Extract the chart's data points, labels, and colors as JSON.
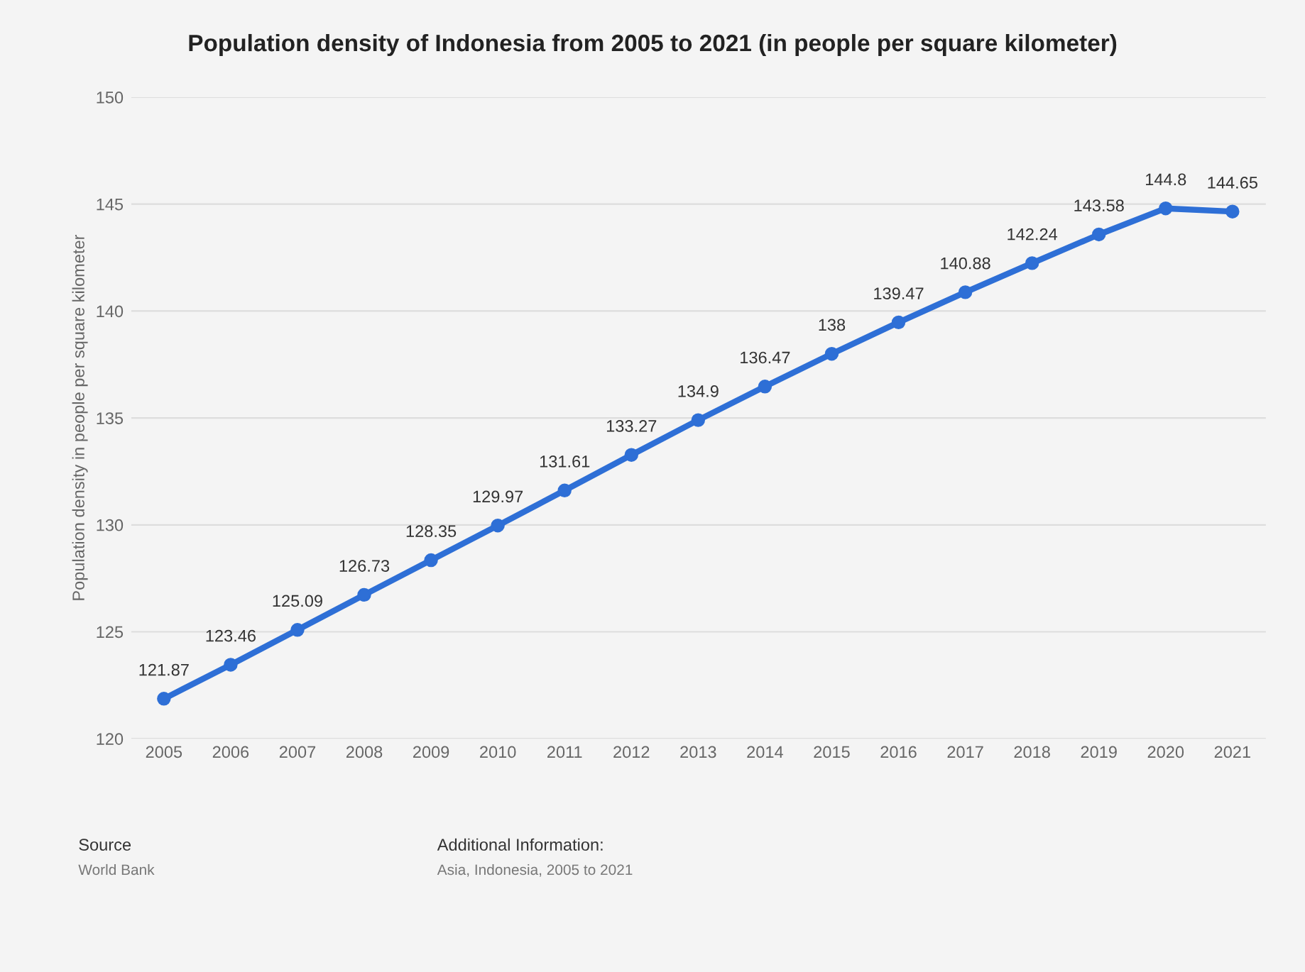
{
  "chart_data": {
    "type": "line",
    "title": "Population density of Indonesia from 2005 to 2021 (in people per square kilometer)",
    "ylabel": "Population density in people per square kilometer",
    "categories": [
      "2005",
      "2006",
      "2007",
      "2008",
      "2009",
      "2010",
      "2011",
      "2012",
      "2013",
      "2014",
      "2015",
      "2016",
      "2017",
      "2018",
      "2019",
      "2020",
      "2021"
    ],
    "series": [
      {
        "color": "#2e6fd6",
        "values": [
          121.87,
          123.46,
          125.09,
          126.73,
          128.35,
          129.97,
          131.61,
          133.27,
          134.9,
          136.47,
          138,
          139.47,
          140.88,
          142.24,
          143.58,
          144.8,
          144.65
        ]
      }
    ],
    "ylim": [
      120,
      150
    ],
    "yticks": [
      120,
      125,
      130,
      135,
      140,
      145,
      150
    ],
    "grid": "y",
    "marker": "circle",
    "line_style": "solid",
    "data_labels": true,
    "annotations": [
      "Source",
      "World Bank",
      "Additional Information:",
      "Asia, Indonesia, 2005 to 2021"
    ]
  }
}
